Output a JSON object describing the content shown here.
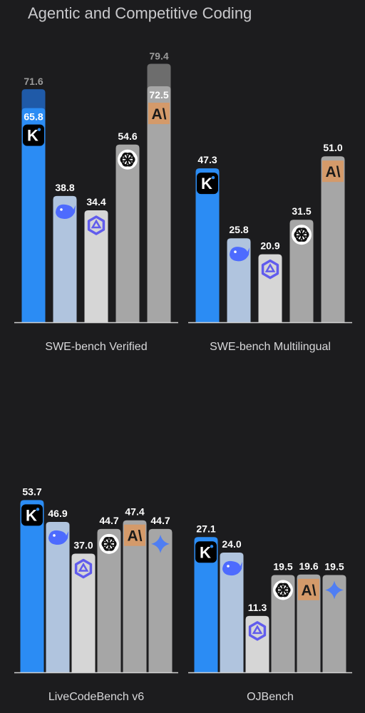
{
  "title": "Agentic and Competitive Coding",
  "colors": {
    "kimi": "#2b8cf4",
    "kimi_ext": "#1f5aa8",
    "deepseek": "#b0c4de",
    "qwen": "#d6d6d6",
    "openai": "#a6a6a6",
    "claude": "#a6a6a6",
    "claude_ext": "#6d6d6d",
    "gemini": "#a6a6a6",
    "claude_badge": "#d49a6a",
    "axis": "#d0d0d0"
  },
  "chart_data": [
    {
      "type": "bar",
      "xlabel": "SWE-bench Verified",
      "ylim": [
        0,
        85
      ],
      "bars": [
        {
          "model": "kimi",
          "value": 65.8,
          "label": "65.8",
          "extra_value": 71.6,
          "extra_label": "71.6",
          "icon": "kimi-logo-icon"
        },
        {
          "model": "deepseek",
          "value": 38.8,
          "label": "38.8",
          "icon": "deepseek-whale-icon"
        },
        {
          "model": "qwen",
          "value": 34.4,
          "label": "34.4",
          "icon": "qwen-logo-icon"
        },
        {
          "model": "openai",
          "value": 54.6,
          "label": "54.6",
          "icon": "openai-logo-icon"
        },
        {
          "model": "claude",
          "value": 72.5,
          "label": "72.5",
          "extra_value": 79.4,
          "extra_label": "79.4",
          "icon": "anthropic-logo-icon"
        }
      ]
    },
    {
      "type": "bar",
      "xlabel": "SWE-bench Multilingual",
      "ylim": [
        0,
        85
      ],
      "bars": [
        {
          "model": "kimi",
          "value": 47.3,
          "label": "47.3",
          "icon": "kimi-logo-icon"
        },
        {
          "model": "deepseek",
          "value": 25.8,
          "label": "25.8",
          "icon": "deepseek-whale-icon"
        },
        {
          "model": "qwen",
          "value": 20.9,
          "label": "20.9",
          "icon": "qwen-logo-icon"
        },
        {
          "model": "openai",
          "value": 31.5,
          "label": "31.5",
          "icon": "openai-logo-icon"
        },
        {
          "model": "claude",
          "value": 51.0,
          "label": "51.0",
          "icon": "anthropic-logo-icon"
        }
      ]
    },
    {
      "type": "bar",
      "xlabel": "LiveCodeBench v6",
      "ylim": [
        0,
        60
      ],
      "bars": [
        {
          "model": "kimi",
          "value": 53.7,
          "label": "53.7",
          "icon": "kimi-logo-icon"
        },
        {
          "model": "deepseek",
          "value": 46.9,
          "label": "46.9",
          "icon": "deepseek-whale-icon"
        },
        {
          "model": "qwen",
          "value": 37.0,
          "label": "37.0",
          "icon": "qwen-logo-icon"
        },
        {
          "model": "openai",
          "value": 44.7,
          "label": "44.7",
          "icon": "openai-logo-icon"
        },
        {
          "model": "claude",
          "value": 47.4,
          "label": "47.4",
          "icon": "anthropic-logo-icon"
        },
        {
          "model": "gemini",
          "value": 44.7,
          "label": "44.7",
          "icon": "gemini-star-icon"
        }
      ]
    },
    {
      "type": "bar",
      "xlabel": "OJBench",
      "ylim": [
        0,
        35
      ],
      "bars": [
        {
          "model": "kimi",
          "value": 27.1,
          "label": "27.1",
          "icon": "kimi-logo-icon"
        },
        {
          "model": "deepseek",
          "value": 24.0,
          "label": "24.0",
          "icon": "deepseek-whale-icon"
        },
        {
          "model": "qwen",
          "value": 11.3,
          "label": "11.3",
          "icon": "qwen-logo-icon"
        },
        {
          "model": "openai",
          "value": 19.5,
          "label": "19.5",
          "icon": "openai-logo-icon"
        },
        {
          "model": "claude",
          "value": 19.6,
          "label": "19.6",
          "icon": "anthropic-logo-icon"
        },
        {
          "model": "gemini",
          "value": 19.5,
          "label": "19.5",
          "icon": "gemini-star-icon"
        }
      ]
    }
  ]
}
